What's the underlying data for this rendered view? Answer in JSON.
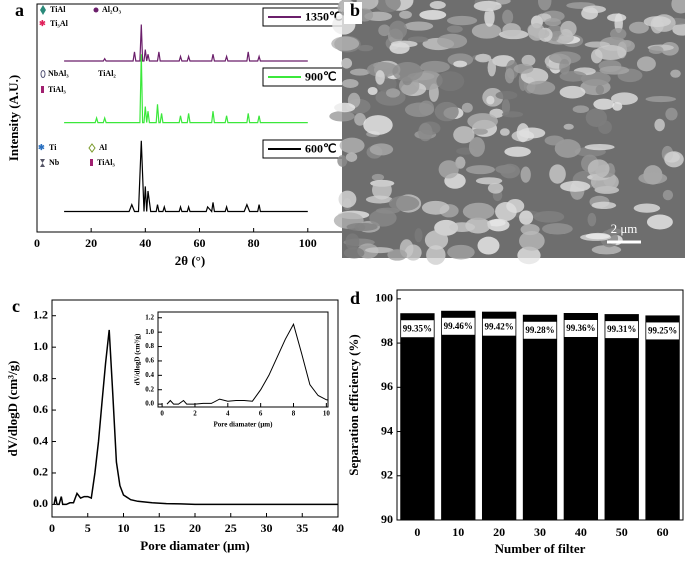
{
  "chart_data": [
    {
      "type": "line",
      "label": "a",
      "xlabel": "2θ (°)",
      "ylabel": "Intensity (A.U.)",
      "xlim": [
        0,
        113
      ],
      "ylim": [
        0,
        100
      ],
      "xticks": [
        0,
        20,
        40,
        60,
        80,
        100
      ],
      "phase_labels": [
        "TiAl",
        "Al₂O₃",
        "Ti₃Al",
        "NbAl₃",
        "TiAl₂",
        "TiAl₃",
        "Ti",
        "Al",
        "Nb",
        "TiAl₃"
      ],
      "series": [
        {
          "name": "1350℃",
          "color": "#6b1f6b",
          "x": [
            10,
            24.5,
            25,
            25.5,
            35.5,
            36,
            36.5,
            38,
            38.5,
            39,
            39.5,
            40,
            40.5,
            41,
            41.5,
            44.5,
            45,
            45.5,
            52.5,
            53,
            53.5,
            55.5,
            56,
            56.5,
            64.5,
            65,
            65.5,
            69.5,
            70,
            70.5,
            77.5,
            78,
            78.5,
            81.5,
            82,
            82.5,
            100
          ],
          "values": [
            75,
            75,
            76,
            75,
            75,
            79,
            75,
            75,
            91,
            75,
            75,
            80,
            75,
            78,
            75,
            75,
            79,
            75,
            75,
            77,
            75,
            75,
            77,
            75,
            75,
            78,
            75,
            75,
            77,
            75,
            75,
            79,
            75,
            75,
            77,
            75,
            75
          ]
        },
        {
          "name": "900℃",
          "color": "#3be83b",
          "x": [
            10,
            21.5,
            22,
            22.5,
            24.5,
            25,
            25.5,
            38,
            38.5,
            39,
            39.5,
            40,
            40.5,
            41,
            41.5,
            44,
            44.5,
            45,
            45.5,
            46,
            46.5,
            52.5,
            53,
            53.5,
            55.5,
            56,
            56.5,
            64.5,
            65,
            65.5,
            69.5,
            70,
            70.5,
            77.5,
            78,
            78.5,
            81.5,
            82,
            82.5,
            100
          ],
          "values": [
            48,
            48,
            50,
            48,
            48,
            50,
            48,
            48,
            78,
            48,
            48,
            55,
            48,
            53,
            48,
            48,
            56,
            48,
            48,
            52,
            48,
            48,
            51,
            48,
            48,
            52,
            48,
            48,
            53,
            48,
            48,
            51,
            48,
            48,
            52,
            48,
            48,
            51,
            48,
            48
          ]
        },
        {
          "name": "600℃",
          "color": "#000000",
          "x": [
            10,
            34,
            35,
            36,
            37.5,
            38.5,
            39.5,
            40,
            40.5,
            41,
            42,
            44,
            44.5,
            45,
            46.5,
            47,
            47.5,
            52.5,
            53,
            53.5,
            55.5,
            56,
            56.5,
            62.5,
            63,
            64.5,
            65,
            65.5,
            69.5,
            70,
            70.5,
            76.5,
            77.5,
            78.5,
            81.5,
            82,
            82.5,
            100
          ],
          "values": [
            9,
            9,
            12,
            9,
            9,
            40,
            9,
            20,
            9,
            18,
            9,
            9,
            12,
            9,
            9,
            11,
            9,
            9,
            11,
            9,
            9,
            11,
            9,
            9,
            11,
            9,
            13,
            9,
            9,
            11,
            9,
            9,
            12,
            9,
            9,
            12,
            9,
            9
          ]
        }
      ]
    },
    {
      "type": "image",
      "label": "b",
      "scale_bar": "2 μm"
    },
    {
      "type": "line",
      "label": "c",
      "xlabel": "Pore diamater (μm)",
      "ylabel": "dV/dlogD (cm³/g)",
      "color": "#000000",
      "xlim": [
        0,
        40
      ],
      "ylim": [
        -0.08,
        1.3
      ],
      "xticks": [
        0,
        5,
        10,
        15,
        20,
        25,
        30,
        35,
        40
      ],
      "yticks": [
        {
          "value": 0,
          "label": "0.0"
        },
        0.2,
        0.4,
        0.6,
        0.8,
        {
          "value": 1,
          "label": "1.0"
        },
        1.2
      ],
      "x": [
        0.3,
        0.5,
        0.7,
        1,
        1.3,
        1.5,
        2,
        2.5,
        3,
        3.5,
        4,
        4.5,
        5,
        5.5,
        6,
        6.5,
        7,
        7.5,
        8,
        8.5,
        9,
        9.5,
        10,
        11,
        12,
        14,
        16,
        18,
        20,
        25,
        30,
        35,
        40
      ],
      "values": [
        0,
        0.05,
        0,
        0,
        0.05,
        0,
        0,
        0.01,
        0.01,
        0.07,
        0.04,
        0.05,
        0.05,
        0.04,
        0.2,
        0.4,
        0.65,
        0.9,
        1.11,
        0.7,
        0.27,
        0.12,
        0.06,
        0.03,
        0.02,
        0.01,
        0.005,
        0.003,
        0,
        0,
        0,
        0,
        0
      ],
      "inset": {
        "xlabel": "Pore diamater (μm)",
        "ylabel": "dV/dlogD (cm³/g)",
        "xlim": [
          -0.25,
          10.1
        ],
        "ylim": [
          -0.04,
          1.28
        ],
        "xticks": [
          0,
          2,
          4,
          6,
          8,
          10
        ],
        "yticks": [
          {
            "value": 0,
            "label": "0.0"
          },
          0.2,
          0.4,
          0.6,
          0.8,
          {
            "value": 1,
            "label": "1.0"
          },
          1.2
        ]
      }
    },
    {
      "type": "bar",
      "label": "d",
      "xlabel": "Number of filter",
      "ylabel": "Separation efficiency (%)",
      "color": "#000000",
      "categories": [
        "0",
        "10",
        "20",
        "30",
        "40",
        "50",
        "60"
      ],
      "values": [
        99.35,
        99.46,
        99.42,
        99.28,
        99.36,
        99.31,
        99.25
      ],
      "value_labels": [
        "99.35%",
        "99.46%",
        "99.42%",
        "99.28%",
        "99.36%",
        "99.31%",
        "99.25%"
      ],
      "ylim": [
        90,
        100.4
      ],
      "yticks": [
        90,
        92,
        94,
        96,
        98,
        100
      ]
    }
  ]
}
